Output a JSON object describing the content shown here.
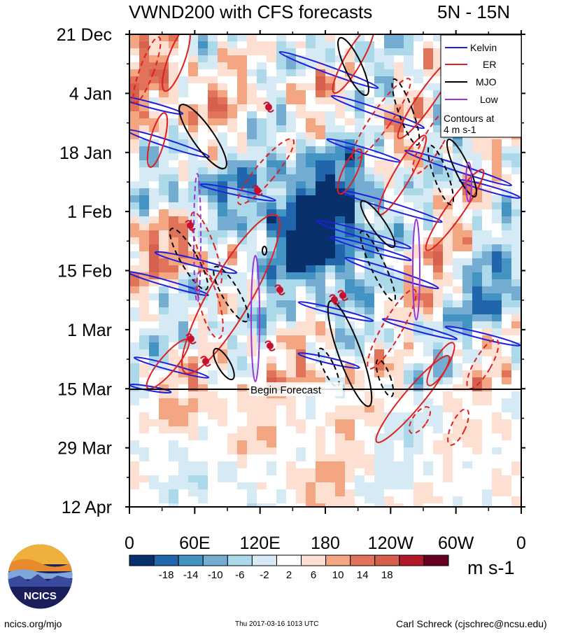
{
  "header": {
    "title": "VWND200 with CFS forecasts",
    "lat_range": "5N - 15N"
  },
  "chart_data": {
    "type": "heatmap",
    "title": "VWND200 with CFS forecasts",
    "region": "5N - 15N",
    "x_tick_labels": [
      "0",
      "60E",
      "120E",
      "180",
      "120W",
      "60W",
      "0"
    ],
    "x_tick_values_deg_east": [
      0,
      60,
      120,
      180,
      240,
      300,
      360
    ],
    "y_tick_labels": [
      "21 Dec",
      "4 Jan",
      "18 Jan",
      "1 Feb",
      "15 Feb",
      "1 Mar",
      "15 Mar",
      "29 Mar",
      "12 Apr"
    ],
    "y_range": [
      "21 Dec",
      "12 Apr"
    ],
    "begin_forecast_label": "Begin Forecast",
    "begin_forecast_date": "15 Mar",
    "colorbar": {
      "unit": "m s-1",
      "tick_labels": [
        "-18",
        "-14",
        "-10",
        "-6",
        "-2",
        "2",
        "6",
        "10",
        "14",
        "18"
      ],
      "colors": [
        "#08306b",
        "#2166ac",
        "#4393c3",
        "#74add1",
        "#abd9e9",
        "#d6eaf5",
        "#ffffff",
        "#fde0d2",
        "#f4a582",
        "#e0735a",
        "#d6604d",
        "#b2182b",
        "#67001f"
      ]
    },
    "legend": {
      "placement": "top-right",
      "entries": [
        {
          "name": "Kelvin",
          "color": "#1f1fe0"
        },
        {
          "name": "ER",
          "color": "#e01f1f"
        },
        {
          "name": "MJO",
          "color": "#000000"
        },
        {
          "name": "Low",
          "color": "#9a35d6"
        }
      ],
      "note_line1": "Contours at",
      "note_line2": "4 m s-1"
    }
  },
  "footer": {
    "logo_text": "NCICS",
    "site": "ncics.org/mjo",
    "timestamp": "Thu 2017-03-16 1013 UTC",
    "author": "Carl Schreck (cjschrec@ncsu.edu)"
  }
}
